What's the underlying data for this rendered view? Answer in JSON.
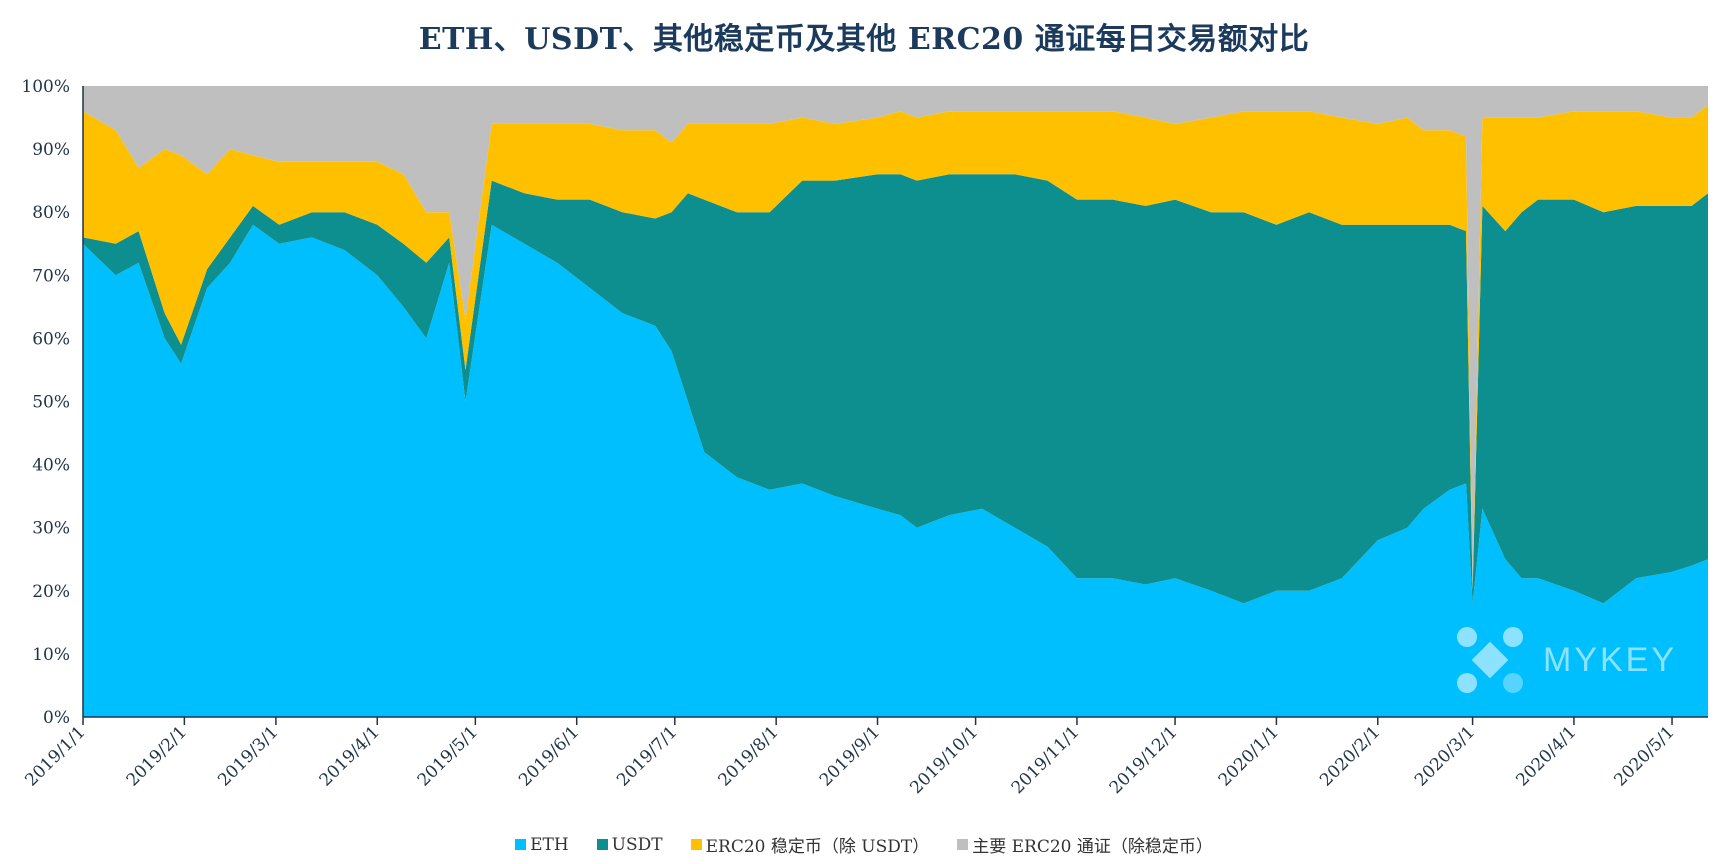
{
  "chart_data": {
    "type": "area",
    "stacked": "percent",
    "title": "ETH、USDT、其他稳定币及其他 ERC20 通证每日交易额对比",
    "ylim": [
      0,
      100
    ],
    "y_ticks": [
      "0%",
      "10%",
      "20%",
      "30%",
      "40%",
      "50%",
      "60%",
      "70%",
      "80%",
      "90%",
      "100%"
    ],
    "x_ticks": [
      "2019/1/1",
      "2019/2/1",
      "2019/3/1",
      "2019/4/1",
      "2019/5/1",
      "2019/6/1",
      "2019/7/1",
      "2019/8/1",
      "2019/9/1",
      "2019/10/1",
      "2019/11/1",
      "2019/12/1",
      "2020/1/1",
      "2020/2/1",
      "2020/3/1",
      "2020/4/1",
      "2020/5/1"
    ],
    "x_tick_days": [
      0,
      31,
      59,
      90,
      120,
      151,
      181,
      212,
      243,
      273,
      304,
      334,
      365,
      396,
      425,
      456,
      486
    ],
    "x_max_day": 497,
    "x": [
      0,
      10,
      17,
      25,
      30,
      38,
      45,
      52,
      60,
      70,
      80,
      90,
      98,
      105,
      112,
      117,
      125,
      135,
      145,
      155,
      165,
      175,
      180,
      185,
      190,
      200,
      210,
      220,
      230,
      243,
      250,
      255,
      265,
      275,
      285,
      295,
      304,
      315,
      325,
      334,
      345,
      355,
      365,
      375,
      385,
      396,
      405,
      410,
      418,
      423,
      425,
      428,
      435,
      440,
      445,
      456,
      465,
      475,
      486,
      492,
      497
    ],
    "series": [
      {
        "name": "ETH",
        "color": "#00bfff",
        "values": [
          75,
          70,
          72,
          60,
          56,
          68,
          72,
          78,
          75,
          76,
          74,
          70,
          65,
          60,
          72,
          50,
          78,
          75,
          72,
          68,
          64,
          62,
          58,
          50,
          42,
          38,
          36,
          37,
          35,
          33,
          32,
          30,
          32,
          33,
          30,
          27,
          22,
          22,
          21,
          22,
          20,
          18,
          20,
          20,
          22,
          28,
          30,
          33,
          36,
          37,
          18,
          33,
          25,
          22,
          22,
          20,
          18,
          22,
          23,
          24,
          25
        ]
      },
      {
        "name": "USDT",
        "color": "#0e8f8f",
        "values": [
          1,
          5,
          5,
          4,
          3,
          3,
          4,
          3,
          3,
          4,
          6,
          8,
          10,
          12,
          4,
          5,
          7,
          8,
          10,
          14,
          16,
          17,
          22,
          33,
          40,
          42,
          44,
          48,
          50,
          53,
          54,
          55,
          54,
          53,
          56,
          58,
          60,
          60,
          60,
          60,
          60,
          62,
          58,
          60,
          56,
          50,
          48,
          45,
          42,
          40,
          2,
          48,
          52,
          58,
          60,
          62,
          62,
          59,
          58,
          57,
          58
        ]
      },
      {
        "name": "ERC20 稳定币（除 USDT）",
        "color": "#ffc000",
        "values": [
          20,
          18,
          10,
          26,
          30,
          15,
          14,
          8,
          10,
          8,
          8,
          10,
          11,
          8,
          4,
          8,
          9,
          11,
          12,
          12,
          13,
          14,
          11,
          11,
          12,
          14,
          14,
          10,
          9,
          9,
          10,
          10,
          10,
          10,
          10,
          11,
          14,
          14,
          14,
          12,
          15,
          16,
          18,
          16,
          17,
          16,
          17,
          15,
          15,
          15,
          0,
          14,
          18,
          15,
          13,
          14,
          16,
          15,
          14,
          14,
          14
        ]
      },
      {
        "name": "主要 ERC20 通证（除稳定币）",
        "color": "#bfbfbf",
        "values": [
          4,
          7,
          13,
          10,
          11,
          14,
          10,
          11,
          12,
          12,
          12,
          12,
          14,
          20,
          20,
          37,
          6,
          6,
          6,
          6,
          7,
          7,
          9,
          6,
          6,
          6,
          6,
          5,
          6,
          5,
          4,
          5,
          4,
          4,
          4,
          4,
          4,
          4,
          5,
          6,
          5,
          4,
          4,
          4,
          5,
          6,
          5,
          7,
          7,
          8,
          80,
          5,
          5,
          5,
          5,
          4,
          4,
          4,
          5,
          5,
          3
        ]
      }
    ]
  },
  "legend": {
    "items": [
      {
        "label": "ETH",
        "color": "#00bfff"
      },
      {
        "label": "USDT",
        "color": "#0e8f8f"
      },
      {
        "label": "ERC20 稳定币（除 USDT）",
        "color": "#ffc000"
      },
      {
        "label": "主要 ERC20 通证（除稳定币）",
        "color": "#bfbfbf"
      }
    ]
  },
  "watermark": {
    "text": "MYKEY"
  },
  "colors": {
    "axis": "#1f3347",
    "title": "#1b3a5c"
  }
}
